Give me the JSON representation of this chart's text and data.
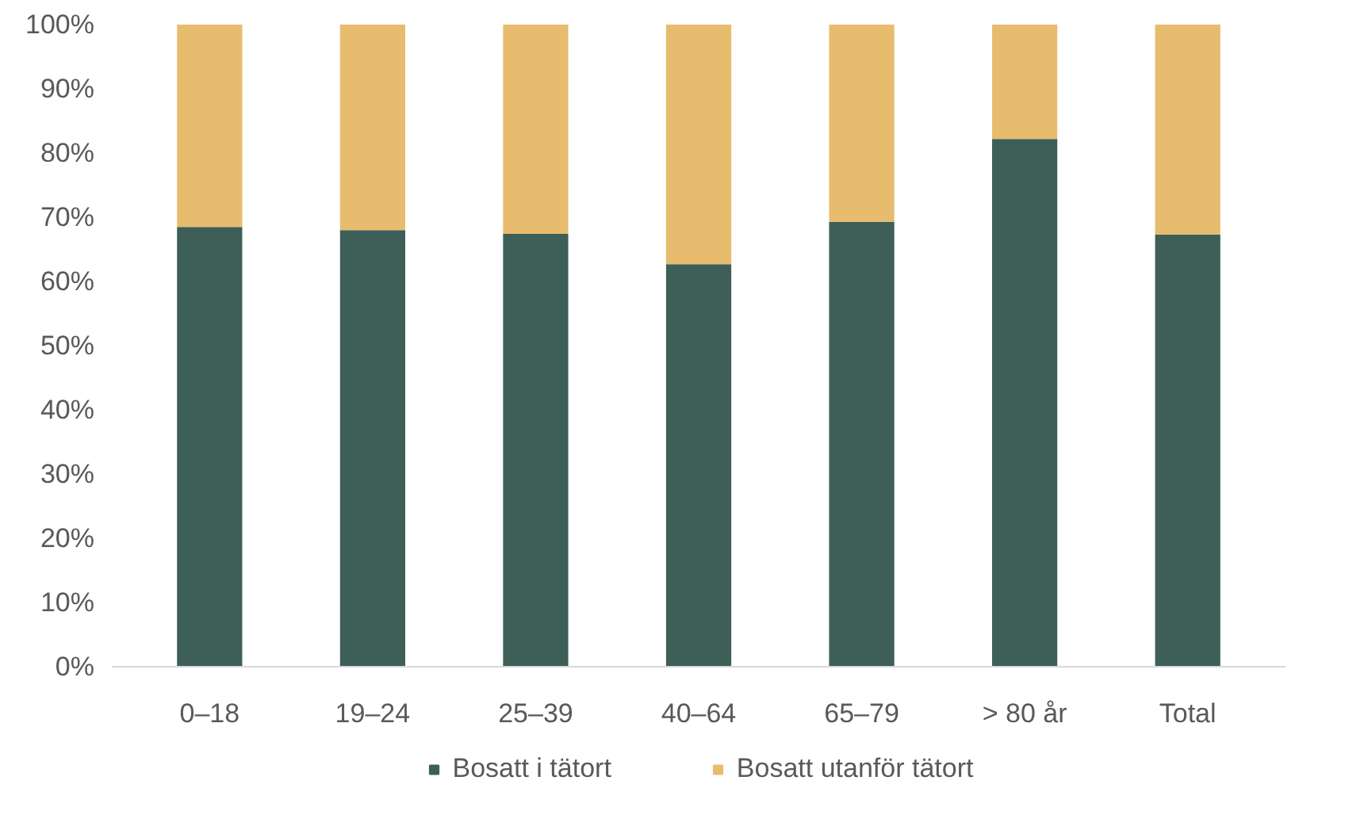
{
  "chart_data": {
    "type": "bar",
    "stacked": true,
    "categories": [
      "0–18",
      "19–24",
      "25–39",
      "40–64",
      "65–79",
      "> 80 år",
      "Total"
    ],
    "series": [
      {
        "name": "Bosatt i tätort",
        "color": "#3d5f57",
        "values": [
          68.5,
          68.0,
          67.4,
          62.7,
          69.3,
          82.2,
          67.3
        ]
      },
      {
        "name": "Bosatt utanför tätort",
        "color": "#e8bc6e",
        "values": [
          31.5,
          32.0,
          32.6,
          37.3,
          30.7,
          17.8,
          32.7
        ]
      }
    ],
    "ylim": [
      0,
      100
    ],
    "yticks": [
      {
        "value": 0,
        "label": "0%"
      },
      {
        "value": 10,
        "label": "10%"
      },
      {
        "value": 20,
        "label": "20%"
      },
      {
        "value": 30,
        "label": "30%"
      },
      {
        "value": 40,
        "label": "40%"
      },
      {
        "value": 50,
        "label": "50%"
      },
      {
        "value": 60,
        "label": "60%"
      },
      {
        "value": 70,
        "label": "70%"
      },
      {
        "value": 80,
        "label": "80%"
      },
      {
        "value": 90,
        "label": "90%"
      },
      {
        "value": 100,
        "label": "100%"
      }
    ],
    "grid": false,
    "legend": "bottom"
  }
}
